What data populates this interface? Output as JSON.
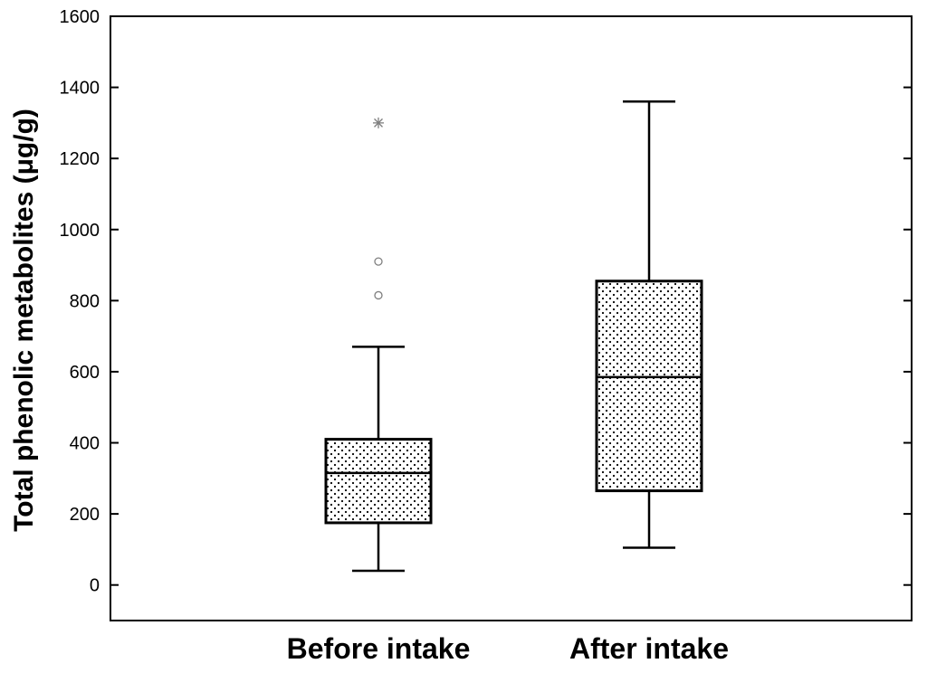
{
  "chart_data": {
    "type": "box",
    "title": "",
    "xlabel": "",
    "ylabel": "Total phenolic metabolites (μg/g)",
    "ylim": [
      -100,
      1600
    ],
    "yticks": [
      0,
      200,
      400,
      600,
      800,
      1000,
      1200,
      1400,
      1600
    ],
    "yticks_labels": [
      "0",
      "200",
      "400",
      "600",
      "800",
      "1000",
      "1200",
      "1400",
      "1600"
    ],
    "grid": false,
    "legend": "none",
    "categories": [
      "Before intake",
      "After intake"
    ],
    "series": [
      {
        "category": "Before intake",
        "whisker_low": 40,
        "q1": 175,
        "median": 315,
        "q3": 410,
        "whisker_high": 670,
        "outliers": [
          815,
          910
        ],
        "extremes": [
          1300
        ]
      },
      {
        "category": "After intake",
        "whisker_low": 105,
        "q1": 265,
        "median": 585,
        "q3": 855,
        "whisker_high": 1360,
        "outliers": [],
        "extremes": []
      }
    ],
    "colors": {
      "box_fill_pattern": "dotted",
      "line": "#000000",
      "outlier": "#7f7f7f"
    }
  }
}
